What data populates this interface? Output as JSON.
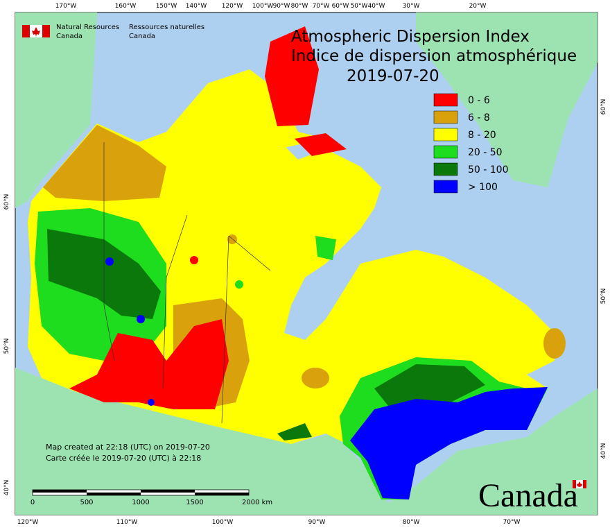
{
  "header": {
    "agency_en": [
      "Natural Resources",
      "Canada"
    ],
    "agency_fr": [
      "Ressources naturelles",
      "Canada"
    ]
  },
  "title": [
    "Atmospheric Dispersion Index",
    "Indice de dispersion atmosphérique"
  ],
  "date": "2019-07-20",
  "legend": [
    {
      "label": "0 - 6",
      "color": "#ff0000"
    },
    {
      "label": "6 - 8",
      "color": "#d9a20c"
    },
    {
      "label": "8 - 20",
      "color": "#ffff00"
    },
    {
      "label": "20 - 50",
      "color": "#1edc1e"
    },
    {
      "label": "50 - 100",
      "color": "#0a780a"
    },
    {
      "label": "> 100",
      "color": "#0000ff"
    }
  ],
  "graticule": {
    "top": [
      "170°W",
      "160°W",
      "150°W",
      "140°W",
      "120°W",
      "100°W",
      "90°W",
      "80°W",
      "70°W",
      "60°W",
      "50°W",
      "40°W",
      "30°W",
      "20°W"
    ],
    "bottom": [
      "120°W",
      "110°W",
      "100°W",
      "90°W",
      "80°W",
      "70°W"
    ],
    "left": [
      "60°N",
      "50°N",
      "40°N"
    ],
    "right": [
      "60°N",
      "50°N",
      "40°N"
    ]
  },
  "credits": [
    "Map created at 22:18 (UTC) on 2019-07-20",
    "Carte créée le 2019-07-20 (UTC) à 22:18"
  ],
  "scale_bar": [
    "0",
    "500",
    "1000",
    "1500",
    "2000  km"
  ],
  "wordmark": "Canada"
}
